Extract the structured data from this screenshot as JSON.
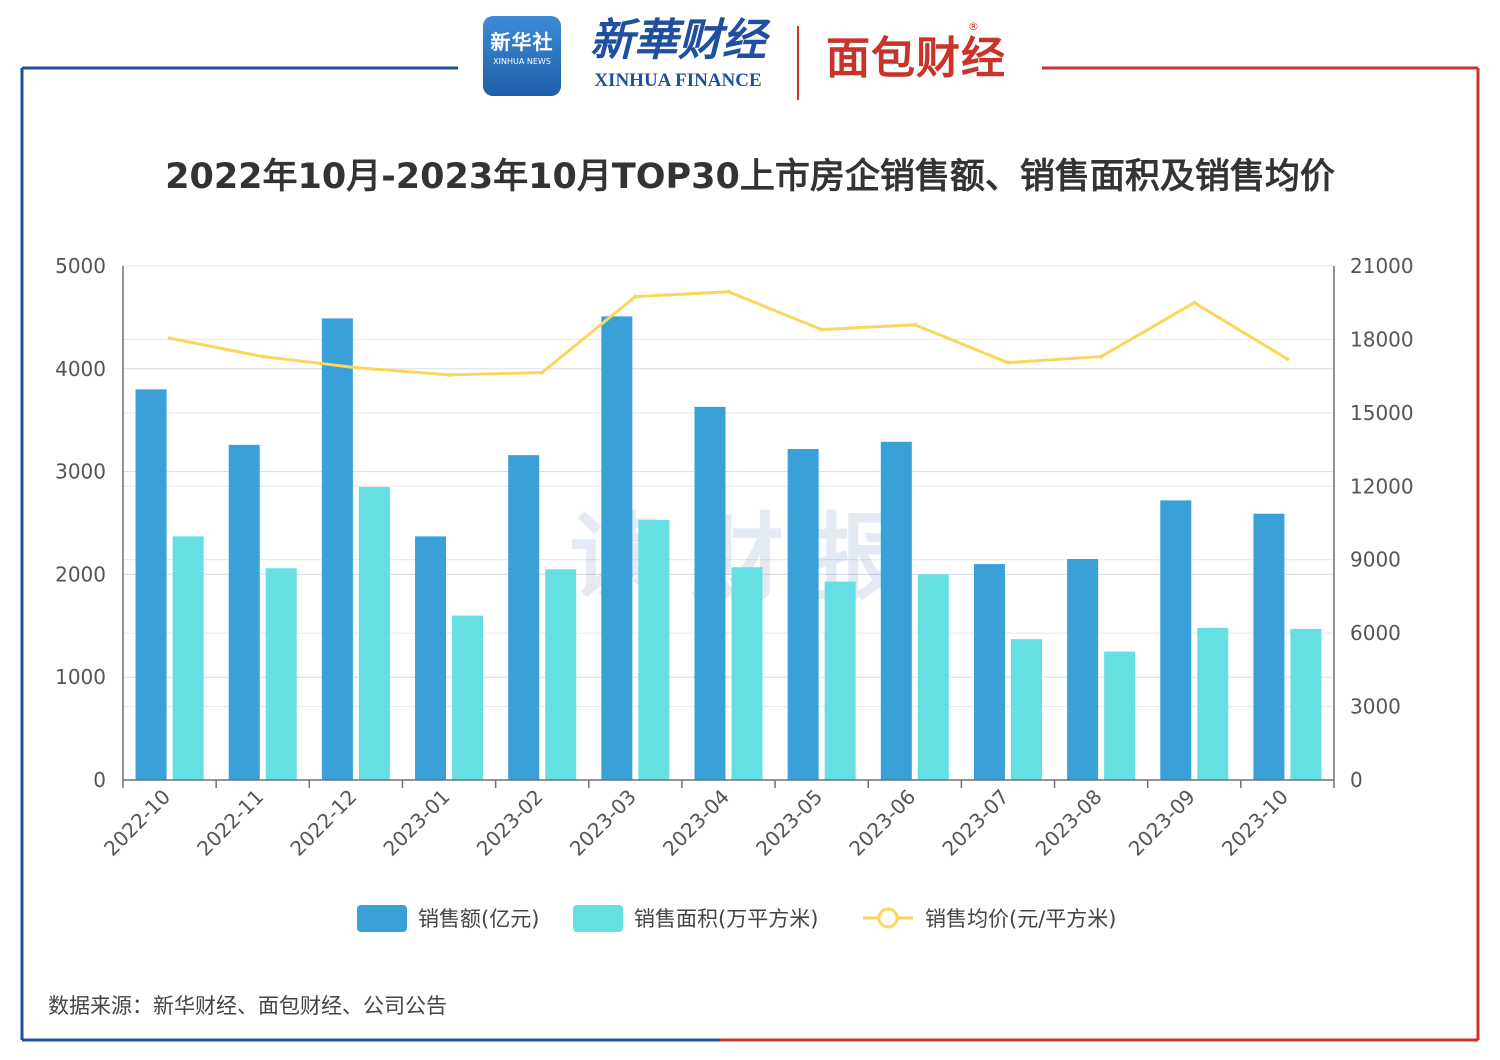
{
  "header": {
    "xinhua_badge_cn": "新华社",
    "xinhua_badge_en": "XINHUA NEWS",
    "xinhua_finance_cn": "新華财经",
    "xinhua_finance_en": "XINHUA FINANCE",
    "mianbao_logo": "面包财经",
    "mianbao_reg": "®"
  },
  "watermark": "读财报",
  "source_note": "数据来源：新华财经、面包财经、公司公告",
  "colors": {
    "frame_left": "#1f4f9e",
    "frame_right": "#c9332a",
    "sales_amount": "#3aa0d8",
    "sales_area": "#66dfe3",
    "avg_price": "#fcd65c"
  },
  "chart_data": {
    "type": "bar",
    "title": "2022年10月-2023年10月TOP30上市房企销售额、销售面积及销售均价",
    "categories": [
      "2022-10",
      "2022-11",
      "2022-12",
      "2023-01",
      "2023-02",
      "2023-03",
      "2023-04",
      "2023-05",
      "2023-06",
      "2023-07",
      "2023-08",
      "2023-09",
      "2023-10"
    ],
    "ylim_left": [
      0,
      5000
    ],
    "yticks_left": [
      "0",
      "1000",
      "2000",
      "3000",
      "4000",
      "5000"
    ],
    "ylim_right": [
      0,
      21000
    ],
    "yticks_right": [
      "0",
      "3000",
      "6000",
      "9000",
      "12000",
      "15000",
      "18000",
      "21000"
    ],
    "grid": true,
    "legend_position": "bottom",
    "series": [
      {
        "name": "销售额(亿元)",
        "type": "bar",
        "axis": "left",
        "values": [
          3800,
          3260,
          4490,
          2370,
          3160,
          4510,
          3630,
          3220,
          3290,
          2100,
          2150,
          2720,
          2590
        ]
      },
      {
        "name": "销售面积(万平方米)",
        "type": "bar",
        "axis": "left",
        "values": [
          2370,
          2060,
          2850,
          1600,
          2050,
          2530,
          2070,
          1930,
          2000,
          1370,
          1250,
          1480,
          1470
        ]
      },
      {
        "name": "销售均价(元/平方米)",
        "type": "line",
        "axis": "right",
        "values": [
          18050,
          17300,
          16850,
          16550,
          16650,
          19750,
          19950,
          18400,
          18600,
          17050,
          17300,
          19500,
          17200
        ]
      }
    ]
  }
}
